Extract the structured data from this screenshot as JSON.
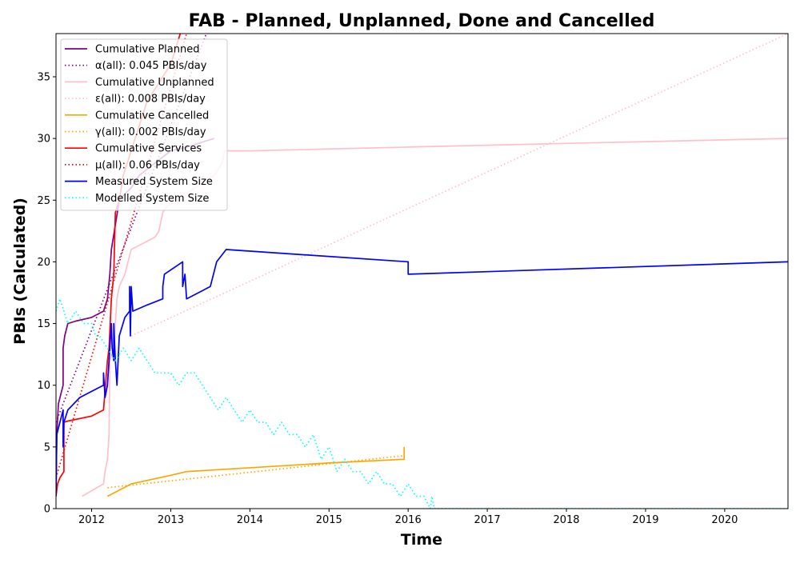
{
  "chart_data": {
    "type": "line",
    "title": "FAB - Planned, Unplanned, Done  and Cancelled",
    "xlabel": "Time",
    "ylabel": "PBIs (Calculated)",
    "xlim": [
      2011.55,
      2020.8
    ],
    "ylim": [
      0,
      38.5
    ],
    "x_ticks": [
      "2012",
      "2013",
      "2014",
      "2015",
      "2016",
      "2017",
      "2018",
      "2019",
      "2020"
    ],
    "y_ticks": [
      "0",
      "5",
      "10",
      "15",
      "20",
      "25",
      "30",
      "35"
    ],
    "grid": false,
    "legend_position": "top-left",
    "series": [
      {
        "name": "Cumulative Planned",
        "color": "#800080",
        "style": "solid",
        "points": [
          [
            2011.55,
            1
          ],
          [
            2011.56,
            6
          ],
          [
            2011.58,
            8.5
          ],
          [
            2011.62,
            9.5
          ],
          [
            2011.64,
            10
          ],
          [
            2011.64,
            12
          ],
          [
            2011.64,
            13
          ],
          [
            2011.66,
            14
          ],
          [
            2011.7,
            15
          ],
          [
            2011.8,
            15.2
          ],
          [
            2012.0,
            15.5
          ],
          [
            2012.15,
            16
          ],
          [
            2012.2,
            17
          ],
          [
            2012.23,
            19
          ],
          [
            2012.25,
            21
          ],
          [
            2012.3,
            23
          ],
          [
            2012.35,
            25
          ],
          [
            2012.42,
            25.5
          ],
          [
            2012.5,
            26
          ],
          [
            2012.6,
            27
          ],
          [
            2012.8,
            28
          ],
          [
            2013.0,
            29
          ],
          [
            2013.2,
            29.3
          ],
          [
            2013.55,
            30
          ]
        ]
      },
      {
        "name": "α(all): 0.045 PBIs/day",
        "color": "#800080",
        "style": "dotted",
        "points": [
          [
            2011.55,
            7
          ],
          [
            2013.45,
            38.5
          ]
        ]
      },
      {
        "name": "Cumulative Unplanned",
        "color": "#ffc0cb",
        "style": "solid",
        "points": [
          [
            2011.88,
            1
          ],
          [
            2012.15,
            2
          ],
          [
            2012.17,
            3
          ],
          [
            2012.2,
            4
          ],
          [
            2012.22,
            6
          ],
          [
            2012.23,
            12
          ],
          [
            2012.28,
            13
          ],
          [
            2012.32,
            17
          ],
          [
            2012.35,
            18
          ],
          [
            2012.42,
            19
          ],
          [
            2012.5,
            21
          ],
          [
            2012.8,
            22
          ],
          [
            2012.85,
            22.5
          ],
          [
            2012.9,
            24
          ],
          [
            2012.95,
            24.5
          ],
          [
            2013.1,
            25
          ],
          [
            2013.3,
            26
          ],
          [
            2013.55,
            27
          ],
          [
            2013.65,
            28
          ],
          [
            2013.68,
            29
          ],
          [
            2014.0,
            29
          ],
          [
            2016.0,
            29.3
          ],
          [
            2018.0,
            29.6
          ],
          [
            2020.8,
            30
          ]
        ]
      },
      {
        "name": "ε(all): 0.008 PBIs/day",
        "color": "#ffc0cb",
        "style": "dotted",
        "points": [
          [
            2012.5,
            14
          ],
          [
            2020.8,
            38.5
          ]
        ]
      },
      {
        "name": "Cumulative Cancelled",
        "color": "#ffa500",
        "style": "solid",
        "points": [
          [
            2012.2,
            1
          ],
          [
            2012.5,
            2
          ],
          [
            2013.0,
            2.7
          ],
          [
            2013.2,
            3
          ],
          [
            2015.0,
            3.7
          ],
          [
            2015.95,
            4
          ],
          [
            2015.95,
            5
          ]
        ]
      },
      {
        "name": "γ(all): 0.002 PBIs/day",
        "color": "#ffa500",
        "style": "dotted",
        "points": [
          [
            2012.2,
            1.7
          ],
          [
            2015.95,
            4.3
          ]
        ]
      },
      {
        "name": "Cumulative Services",
        "color": "#ff0000",
        "style": "solid",
        "points": [
          [
            2011.55,
            1
          ],
          [
            2011.57,
            2
          ],
          [
            2011.6,
            2.5
          ],
          [
            2011.65,
            3
          ],
          [
            2011.65,
            7
          ],
          [
            2011.7,
            7.1
          ],
          [
            2012.0,
            7.5
          ],
          [
            2012.15,
            8
          ],
          [
            2012.2,
            12
          ],
          [
            2012.22,
            13
          ],
          [
            2012.25,
            17
          ],
          [
            2012.28,
            19
          ],
          [
            2012.3,
            24
          ],
          [
            2012.35,
            25
          ],
          [
            2012.4,
            27
          ],
          [
            2012.5,
            29
          ],
          [
            2012.6,
            31
          ],
          [
            2012.7,
            33
          ],
          [
            2012.9,
            35
          ],
          [
            2013.0,
            36
          ],
          [
            2013.12,
            38.5
          ]
        ]
      },
      {
        "name": "μ(all): 0.06 PBIs/day",
        "color": "#ff0000",
        "style": "dotted",
        "points": [
          [
            2011.55,
            2.5
          ],
          [
            2013.2,
            38.5
          ]
        ]
      },
      {
        "name": "Measured System Size",
        "color": "#0000ff",
        "style": "solid",
        "points": [
          [
            2011.55,
            1
          ],
          [
            2011.56,
            6
          ],
          [
            2011.6,
            7
          ],
          [
            2011.64,
            8
          ],
          [
            2011.64,
            5
          ],
          [
            2011.65,
            7
          ],
          [
            2011.7,
            8
          ],
          [
            2011.85,
            9
          ],
          [
            2012.0,
            9.5
          ],
          [
            2012.15,
            10
          ],
          [
            2012.15,
            11
          ],
          [
            2012.17,
            9
          ],
          [
            2012.2,
            10
          ],
          [
            2012.22,
            12
          ],
          [
            2012.25,
            15
          ],
          [
            2012.26,
            13
          ],
          [
            2012.28,
            12
          ],
          [
            2012.28,
            15
          ],
          [
            2012.3,
            12
          ],
          [
            2012.32,
            10
          ],
          [
            2012.35,
            14
          ],
          [
            2012.42,
            15.5
          ],
          [
            2012.48,
            16
          ],
          [
            2012.48,
            18
          ],
          [
            2012.49,
            14
          ],
          [
            2012.5,
            18
          ],
          [
            2012.52,
            16
          ],
          [
            2012.7,
            16.5
          ],
          [
            2012.9,
            17
          ],
          [
            2012.9,
            18
          ],
          [
            2012.92,
            19
          ],
          [
            2013.15,
            20
          ],
          [
            2013.15,
            18
          ],
          [
            2013.18,
            19
          ],
          [
            2013.2,
            17
          ],
          [
            2013.5,
            18
          ],
          [
            2013.58,
            20
          ],
          [
            2013.7,
            21
          ],
          [
            2016.0,
            20
          ],
          [
            2016.0,
            19
          ],
          [
            2020.8,
            20
          ]
        ]
      },
      {
        "name": "Modelled System Size",
        "color": "#00ffff",
        "style": "dotted",
        "points": [
          [
            2011.55,
            16
          ],
          [
            2011.6,
            17
          ],
          [
            2011.65,
            16
          ],
          [
            2011.7,
            15
          ],
          [
            2011.8,
            16
          ],
          [
            2011.9,
            15
          ],
          [
            2012.0,
            15
          ],
          [
            2012.05,
            14
          ],
          [
            2012.1,
            14
          ],
          [
            2012.2,
            13
          ],
          [
            2012.3,
            12
          ],
          [
            2012.4,
            13
          ],
          [
            2012.5,
            12
          ],
          [
            2012.6,
            13
          ],
          [
            2012.7,
            12
          ],
          [
            2012.8,
            11
          ],
          [
            2013.0,
            11
          ],
          [
            2013.1,
            10
          ],
          [
            2013.2,
            11
          ],
          [
            2013.3,
            11
          ],
          [
            2013.4,
            10
          ],
          [
            2013.5,
            9
          ],
          [
            2013.6,
            8
          ],
          [
            2013.7,
            9
          ],
          [
            2013.8,
            8
          ],
          [
            2013.9,
            7
          ],
          [
            2014.0,
            8
          ],
          [
            2014.1,
            7
          ],
          [
            2014.2,
            7
          ],
          [
            2014.3,
            6
          ],
          [
            2014.4,
            7
          ],
          [
            2014.5,
            6
          ],
          [
            2014.6,
            6
          ],
          [
            2014.7,
            5
          ],
          [
            2014.8,
            6
          ],
          [
            2014.9,
            4
          ],
          [
            2015.0,
            5
          ],
          [
            2015.1,
            3
          ],
          [
            2015.2,
            4
          ],
          [
            2015.3,
            3
          ],
          [
            2015.4,
            3
          ],
          [
            2015.5,
            2
          ],
          [
            2015.6,
            3
          ],
          [
            2015.7,
            2
          ],
          [
            2015.8,
            2
          ],
          [
            2015.9,
            1
          ],
          [
            2016.0,
            2
          ],
          [
            2016.1,
            1
          ],
          [
            2016.2,
            1
          ],
          [
            2016.28,
            0
          ],
          [
            2016.3,
            1
          ],
          [
            2016.33,
            0
          ],
          [
            2020.8,
            0
          ]
        ]
      }
    ]
  }
}
